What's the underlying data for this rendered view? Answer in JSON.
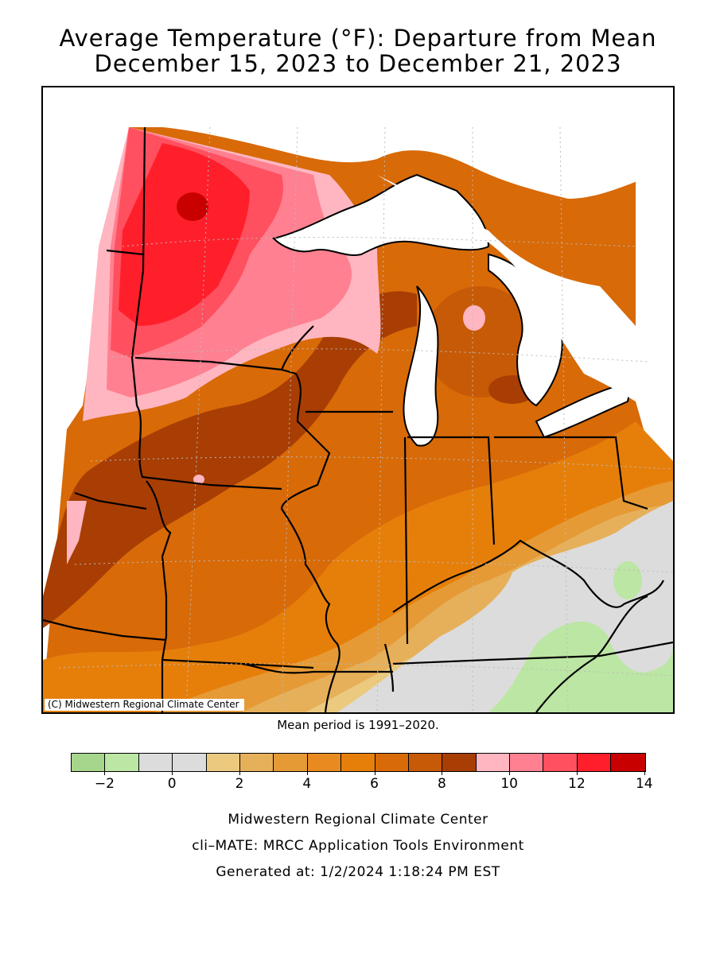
{
  "title": {
    "line1": "Average Temperature (°F): Departure from Mean",
    "line2": "December 15, 2023 to December 21, 2023"
  },
  "map": {
    "copyright": "(C) Midwestern Regional Climate Center",
    "region_colors": {
      "water": "#ffffff",
      "minus2": "#a6d68c",
      "minus1": "#bce6a4",
      "zero": "#dcdcdc",
      "plus1": "#ebc97f",
      "plus2": "#e6b05a",
      "plus3": "#e59a36",
      "plus4": "#e88a20",
      "plus5": "#e67f0a",
      "plus6": "#d86a08",
      "plus7": "#c75a06",
      "plus8": "#a83e04",
      "plus9": "#ffb6c1",
      "plus10": "#ff8090",
      "plus11": "#ff5060",
      "plus12": "#ff1f2b",
      "plus13": "#c80000"
    }
  },
  "mean_note": "Mean period is 1991–2020.",
  "legend": {
    "colors": [
      "#a6d68c",
      "#bce6a4",
      "#dcdcdc",
      "#dcdcdc",
      "#ebc97f",
      "#e6b05a",
      "#e59a36",
      "#e88a20",
      "#e67f0a",
      "#d86a08",
      "#c75a06",
      "#a83e04",
      "#ffb6c1",
      "#ff8090",
      "#ff5060",
      "#ff1f2b",
      "#c80000"
    ],
    "tick_labels": [
      "−2",
      "0",
      "2",
      "4",
      "6",
      "8",
      "10",
      "12",
      "14"
    ]
  },
  "footer": {
    "line1": "Midwestern Regional Climate Center",
    "line2": "cli–MATE: MRCC Application Tools Environment",
    "line3": "Generated at: 1/2/2024 1:18:24 PM EST"
  }
}
